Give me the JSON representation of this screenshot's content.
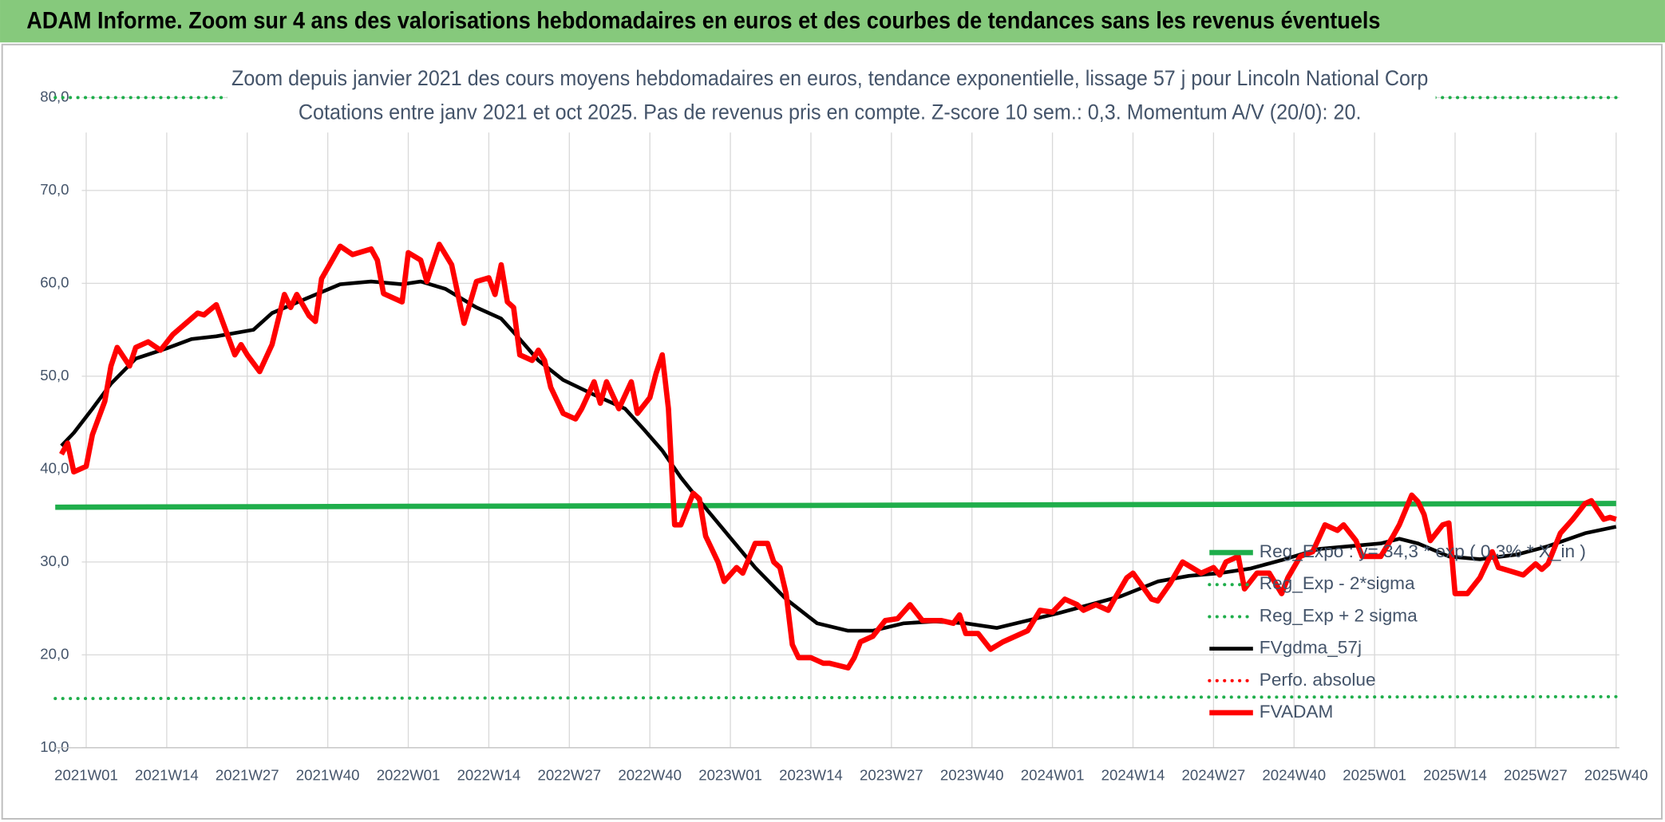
{
  "chart_data": {
    "type": "line",
    "header": "ADAM Informe. Zoom sur 4 ans des valorisations hebdomadaires en euros et des courbes de tendances sans les revenus éventuels",
    "title": "Zoom depuis janvier 2021 des cours moyens hebdomadaires en euros, tendance exponentielle, lissage 57 j pour Lincoln National Corp",
    "subtitle": "Cotations entre janv 2021 et oct 2025. Pas de revenus pris en compte. Z-score 10 sem.: 0,3. Momentum A/V (20/0): 20.",
    "xlim": [
      -5,
      247
    ],
    "xticks": [
      {
        "value": 0,
        "label": "2021W01"
      },
      {
        "value": 13,
        "label": "2021W14"
      },
      {
        "value": 26,
        "label": "2021W27"
      },
      {
        "value": 39,
        "label": "2021W40"
      },
      {
        "value": 52,
        "label": "2022W01"
      },
      {
        "value": 65,
        "label": "2022W14"
      },
      {
        "value": 78,
        "label": "2022W27"
      },
      {
        "value": 91,
        "label": "2022W40"
      },
      {
        "value": 104,
        "label": "2023W01"
      },
      {
        "value": 117,
        "label": "2023W14"
      },
      {
        "value": 130,
        "label": "2023W27"
      },
      {
        "value": 143,
        "label": "2023W40"
      },
      {
        "value": 156,
        "label": "2024W01"
      },
      {
        "value": 169,
        "label": "2024W14"
      },
      {
        "value": 182,
        "label": "2024W27"
      },
      {
        "value": 195,
        "label": "2024W40"
      },
      {
        "value": 208,
        "label": "2025W01"
      },
      {
        "value": 221,
        "label": "2025W14"
      },
      {
        "value": 234,
        "label": "2025W27"
      },
      {
        "value": 247,
        "label": "2025W40"
      }
    ],
    "ylim": [
      10,
      80
    ],
    "yticks": [
      {
        "value": 10,
        "label": "10,0"
      },
      {
        "value": 20,
        "label": "20,0"
      },
      {
        "value": 30,
        "label": "30,0"
      },
      {
        "value": 40,
        "label": "40,0"
      },
      {
        "value": 50,
        "label": "50,0"
      },
      {
        "value": 60,
        "label": "60,0"
      },
      {
        "value": 70,
        "label": "70,0"
      },
      {
        "value": 80,
        "label": "80,0"
      }
    ],
    "grid": true,
    "legend": "right",
    "series": [
      {
        "name": "Reg_Expo : y= 34,3 * exp ( 0,3% * X_in )",
        "color": "#1fae4b",
        "dash": "solid",
        "x": [
          -5,
          247
        ],
        "values": [
          35.9,
          36.3
        ]
      },
      {
        "name": "Reg_Exp - 2*sigma",
        "color": "#1fae4b",
        "dash": "dotted",
        "x": [
          -5,
          247
        ],
        "values": [
          15.3,
          15.5
        ]
      },
      {
        "name": "Reg_Exp + 2 sigma",
        "color": "#1fae4b",
        "dash": "dotted",
        "x": [
          -5,
          247
        ],
        "values": [
          80.0,
          80.0
        ]
      },
      {
        "name": "FVgdma_57j",
        "color": "#000000",
        "dash": "solid",
        "x": [
          -4,
          -2,
          1,
          4,
          8,
          13,
          17,
          21,
          27,
          30,
          36,
          41,
          46,
          51,
          54,
          58,
          63,
          67,
          70,
          73,
          77,
          82,
          87,
          90,
          93,
          96,
          99,
          103,
          108,
          113,
          118,
          123,
          127,
          132,
          137,
          142,
          147,
          152,
          157,
          162,
          167,
          173,
          178,
          183,
          188,
          193,
          199,
          204,
          209,
          212,
          215,
          220,
          225,
          231,
          236,
          242,
          247
        ],
        "values": [
          42.5,
          43.9,
          46.5,
          49.2,
          51.9,
          53.0,
          54.0,
          54.3,
          55.0,
          56.8,
          58.5,
          59.9,
          60.2,
          59.9,
          60.2,
          59.4,
          57.4,
          56.2,
          54.0,
          51.7,
          49.6,
          48.0,
          46.5,
          44.3,
          42.0,
          39.1,
          36.6,
          33.4,
          29.4,
          26.0,
          23.4,
          22.6,
          22.6,
          23.4,
          23.6,
          23.4,
          22.9,
          23.7,
          24.5,
          25.4,
          26.3,
          27.9,
          28.5,
          28.8,
          29.3,
          30.2,
          31.4,
          31.7,
          32.0,
          32.5,
          32.0,
          30.6,
          30.3,
          30.8,
          31.7,
          33.1,
          33.8
        ]
      },
      {
        "name": "Perfo. absolue",
        "color": "#ff0000",
        "dash": "dotted",
        "x": [],
        "values": []
      },
      {
        "name": "FVADAM",
        "color": "#ff0000",
        "dash": "solid",
        "x": [
          -4,
          -3,
          -2,
          0,
          1,
          3,
          4,
          5,
          7,
          8,
          10,
          12,
          14,
          18,
          19,
          21,
          24,
          25,
          26,
          28,
          30,
          32,
          33,
          34,
          36,
          37,
          38,
          41,
          43,
          46,
          47,
          48,
          51,
          52,
          54,
          55,
          57,
          59,
          61,
          63,
          65,
          66,
          67,
          68,
          69,
          70,
          72,
          73,
          74,
          75,
          77,
          79,
          80,
          82,
          83,
          84,
          86,
          88,
          89,
          91,
          92,
          93,
          94,
          95,
          96,
          98,
          99,
          100,
          102,
          103,
          105,
          106,
          108,
          110,
          111,
          112,
          113,
          114,
          115,
          117,
          119,
          120,
          123,
          124,
          125,
          127,
          129,
          131,
          133,
          135,
          138,
          140,
          141,
          142,
          144,
          146,
          148,
          150,
          152,
          154,
          156,
          158,
          160,
          161,
          163,
          165,
          166,
          168,
          169,
          172,
          173,
          175,
          177,
          180,
          182,
          183,
          184,
          186,
          187,
          189,
          191,
          193,
          194,
          196,
          198,
          200,
          202,
          203,
          205,
          206,
          209,
          211,
          212,
          214,
          215,
          216,
          217,
          219,
          220,
          221,
          223,
          225,
          227,
          228,
          231,
          232,
          234,
          235,
          236,
          238,
          240,
          242,
          243,
          245,
          246,
          247
        ],
        "values": [
          41.6,
          42.8,
          39.7,
          40.3,
          43.7,
          47.3,
          51.1,
          53.1,
          51.1,
          53.1,
          53.7,
          52.8,
          54.5,
          56.8,
          56.6,
          57.7,
          52.3,
          53.4,
          52.3,
          50.5,
          53.4,
          58.8,
          57.4,
          58.8,
          56.5,
          55.9,
          60.5,
          64.0,
          63.1,
          63.7,
          62.5,
          58.9,
          58.0,
          63.3,
          62.5,
          60.2,
          64.2,
          62.0,
          55.7,
          60.2,
          60.6,
          58.8,
          62.0,
          58.0,
          57.4,
          52.3,
          51.7,
          52.8,
          51.7,
          48.8,
          46.0,
          45.4,
          46.5,
          49.4,
          47.1,
          49.4,
          46.5,
          49.4,
          46.0,
          47.7,
          50.3,
          52.3,
          46.5,
          34.0,
          34.0,
          37.4,
          36.8,
          32.8,
          30.0,
          27.9,
          29.4,
          28.8,
          32.0,
          32.0,
          30.0,
          29.4,
          26.6,
          21.1,
          19.7,
          19.7,
          19.1,
          19.1,
          18.6,
          19.7,
          21.4,
          22.0,
          23.7,
          23.9,
          25.4,
          23.7,
          23.7,
          23.4,
          24.3,
          22.3,
          22.3,
          20.6,
          21.4,
          22.0,
          22.6,
          24.8,
          24.6,
          26.0,
          25.4,
          24.8,
          25.4,
          24.8,
          26.0,
          28.3,
          28.8,
          26.0,
          25.8,
          27.7,
          30.0,
          28.8,
          29.4,
          28.6,
          30.0,
          30.6,
          27.1,
          28.8,
          28.8,
          26.6,
          28.3,
          30.6,
          31.1,
          34.0,
          33.4,
          34.0,
          32.3,
          30.6,
          30.6,
          32.8,
          34.0,
          37.2,
          36.5,
          35.1,
          32.3,
          34.0,
          34.2,
          26.6,
          26.6,
          28.3,
          31.1,
          29.4,
          28.8,
          28.6,
          29.8,
          29.2,
          29.8,
          33.1,
          34.6,
          36.3,
          36.6,
          34.6,
          34.8,
          34.6
        ]
      }
    ]
  }
}
